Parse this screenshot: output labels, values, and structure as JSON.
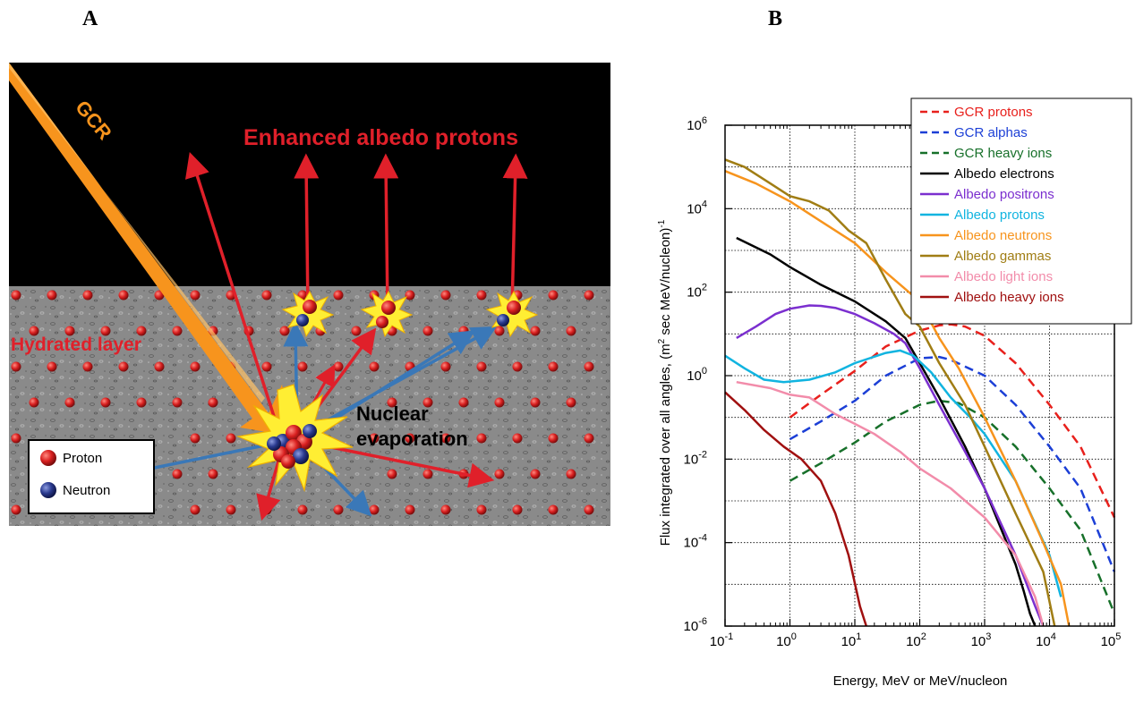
{
  "panels": {
    "a_label": "A",
    "b_label": "B"
  },
  "diagram": {
    "gcr_label": "GCR",
    "albedo_label": "Enhanced albedo protons",
    "hydrated_label": "Hydrated layer",
    "nuclear_label_1": "Nuclear",
    "nuclear_label_2": "evaporation",
    "legend": {
      "proton": "Proton",
      "neutron": "Neutron"
    },
    "colors": {
      "sky": "#000000",
      "regolith": "#8a8a8a",
      "proton": "#d92020",
      "neutron": "#2a3a8f",
      "arrow_red": "#e0202a",
      "arrow_blue": "#3a78b8",
      "gcr_orange": "#f7941d",
      "burst": "#ffee33"
    }
  },
  "chart_data": {
    "type": "line",
    "x_scale": "log",
    "y_scale": "log",
    "xlim": [
      0.1,
      100000
    ],
    "ylim": [
      1e-06,
      1000000
    ],
    "xlabel": "Energy, MeV or MeV/nucleon",
    "ylabel_main": "Flux integrated over all angles, (m",
    "ylabel_sup1": "2",
    "ylabel_mid": " sec MeV/nucleon)",
    "ylabel_sup2": "-1",
    "x_ticks": [
      {
        "v": 0.1,
        "base": "10",
        "exp": "-1"
      },
      {
        "v": 1,
        "base": "10",
        "exp": "0"
      },
      {
        "v": 10,
        "base": "10",
        "exp": "1"
      },
      {
        "v": 100,
        "base": "10",
        "exp": "2"
      },
      {
        "v": 1000,
        "base": "10",
        "exp": "3"
      },
      {
        "v": 10000,
        "base": "10",
        "exp": "4"
      },
      {
        "v": 100000,
        "base": "10",
        "exp": "5"
      }
    ],
    "y_ticks": [
      {
        "v": 1e-06,
        "base": "10",
        "exp": "-6"
      },
      {
        "v": 0.0001,
        "base": "10",
        "exp": "-4"
      },
      {
        "v": 0.01,
        "base": "10",
        "exp": "-2"
      },
      {
        "v": 1,
        "base": "10",
        "exp": "0"
      },
      {
        "v": 100,
        "base": "10",
        "exp": "2"
      },
      {
        "v": 10000,
        "base": "10",
        "exp": "4"
      },
      {
        "v": 1000000,
        "base": "10",
        "exp": "6"
      }
    ],
    "grid": true,
    "legend_position": "top-right",
    "series": [
      {
        "name": "GCR protons",
        "color": "#e8201c",
        "dash": true,
        "x": [
          1,
          3,
          10,
          30,
          100,
          200,
          300,
          500,
          1000,
          3000,
          10000,
          30000,
          100000
        ],
        "y": [
          0.1,
          0.35,
          1.3,
          5,
          12,
          16,
          17,
          15,
          9,
          2,
          0.2,
          0.02,
          0.0004
        ]
      },
      {
        "name": "GCR alphas",
        "color": "#1c3fd6",
        "dash": true,
        "x": [
          1,
          3,
          10,
          30,
          100,
          200,
          300,
          1000,
          3000,
          10000,
          30000,
          100000
        ],
        "y": [
          0.03,
          0.08,
          0.25,
          1,
          2.6,
          2.8,
          2.4,
          1,
          0.2,
          0.02,
          0.002,
          2e-05
        ]
      },
      {
        "name": "GCR heavy ions",
        "color": "#17702a",
        "dash": true,
        "x": [
          1,
          3,
          10,
          30,
          100,
          200,
          400,
          1000,
          3000,
          10000,
          30000,
          100000
        ],
        "y": [
          0.003,
          0.008,
          0.025,
          0.08,
          0.2,
          0.25,
          0.22,
          0.1,
          0.02,
          0.002,
          0.0002,
          2e-06
        ]
      },
      {
        "name": "Albedo electrons",
        "color": "#000000",
        "dash": false,
        "x": [
          0.15,
          0.5,
          1,
          3,
          10,
          30,
          60,
          100,
          200,
          500,
          1000,
          3000,
          4000,
          5000,
          6000
        ],
        "y": [
          2000,
          800,
          400,
          150,
          60,
          20,
          8,
          2,
          0.3,
          0.02,
          0.002,
          3e-05,
          7e-06,
          2e-06,
          1e-06
        ]
      },
      {
        "name": "Albedo positrons",
        "color": "#7b2fcf",
        "dash": false,
        "x": [
          0.15,
          0.3,
          0.6,
          1,
          2,
          3,
          5,
          10,
          20,
          40,
          60,
          100,
          200,
          500,
          1000,
          3000,
          6000,
          8000
        ],
        "y": [
          8,
          15,
          30,
          40,
          48,
          47,
          42,
          30,
          18,
          10,
          6,
          1.5,
          0.2,
          0.015,
          0.002,
          5e-05,
          3e-06,
          1e-06
        ]
      },
      {
        "name": "Albedo protons",
        "color": "#11b4e0",
        "dash": false,
        "x": [
          0.1,
          0.2,
          0.4,
          0.8,
          2,
          5,
          10,
          30,
          50,
          80,
          150,
          300,
          600,
          1000,
          3000,
          10000,
          15000
        ],
        "y": [
          3,
          1.5,
          0.8,
          0.7,
          0.8,
          1.2,
          2,
          3.5,
          4,
          3,
          1.2,
          0.3,
          0.1,
          0.04,
          0.003,
          5e-05,
          5e-06
        ]
      },
      {
        "name": "Albedo neutrons",
        "color": "#f7941d",
        "dash": false,
        "x": [
          0.1,
          0.3,
          1,
          3,
          10,
          30,
          100,
          200,
          400,
          1000,
          3000,
          8000,
          15000,
          20000
        ],
        "y": [
          80000,
          40000,
          15000,
          5000,
          1500,
          300,
          60,
          8,
          1.5,
          0.1,
          0.003,
          0.0001,
          1e-05,
          1e-06
        ]
      },
      {
        "name": "Albedo gammas",
        "color": "#a07d14",
        "dash": false,
        "x": [
          0.1,
          0.2,
          0.5,
          1,
          2,
          4,
          8,
          15,
          30,
          60,
          100,
          200,
          500,
          1000,
          3000,
          8000,
          12000
        ],
        "y": [
          150000,
          100000,
          40000,
          20000,
          15000,
          9000,
          3000,
          1500,
          200,
          30,
          15,
          2,
          0.2,
          0.02,
          0.0005,
          2e-05,
          1e-06
        ]
      },
      {
        "name": "Albedo light ions",
        "color": "#f28caa",
        "dash": false,
        "x": [
          0.15,
          0.5,
          1,
          2,
          5,
          10,
          20,
          50,
          100,
          300,
          1000,
          3000,
          6000,
          8000
        ],
        "y": [
          0.7,
          0.5,
          0.35,
          0.3,
          0.12,
          0.07,
          0.04,
          0.015,
          0.006,
          0.002,
          0.0004,
          5e-05,
          5e-06,
          1e-06
        ]
      },
      {
        "name": "Albedo heavy ions",
        "color": "#a01010",
        "dash": false,
        "x": [
          0.1,
          0.2,
          0.4,
          0.8,
          1.5,
          3,
          5,
          8,
          12,
          15
        ],
        "y": [
          0.4,
          0.15,
          0.05,
          0.02,
          0.01,
          0.003,
          0.0005,
          5e-05,
          3e-06,
          1e-06
        ]
      }
    ]
  }
}
